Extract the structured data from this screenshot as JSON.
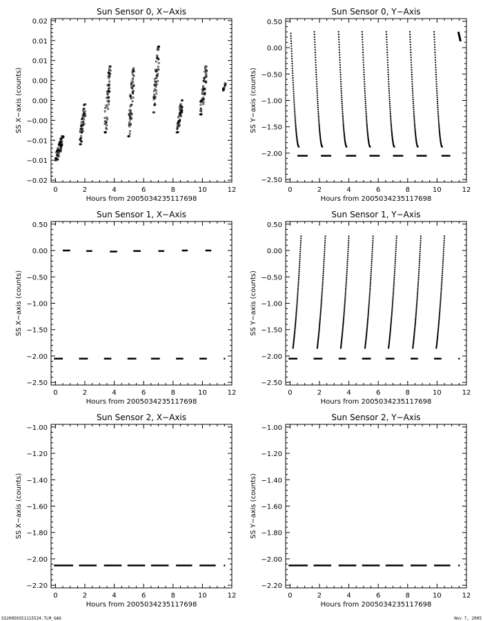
{
  "footer": {
    "left": "SS20050351115524.TLM_GAO",
    "right": "Nov  7, 2005"
  },
  "chart_data": [
    {
      "type": "scatter",
      "title": "Sun Sensor 0, X−Axis",
      "xlabel": "Hours from 2005034235117698",
      "ylabel": "SS X−axis (counts)",
      "xlim": [
        -0.3,
        12
      ],
      "ylim": [
        -0.0205,
        0.0205
      ],
      "xticks": [
        0,
        2,
        4,
        6,
        8,
        10,
        12
      ],
      "yticks": [
        -0.02,
        -0.015,
        -0.01,
        -0.005,
        0.0,
        0.005,
        0.01,
        0.015,
        0.02
      ],
      "yticklabels": [
        "−0.02",
        "−0.01",
        "−0.01",
        "−0.00",
        "0.00",
        "0.00",
        "0.01",
        "0.01",
        "0.02"
      ],
      "groups": [
        {
          "x": [
            0.0,
            0.55
          ],
          "y": [
            -0.015,
            -0.009
          ],
          "points": 70
        },
        {
          "x": [
            1.65,
            2.05
          ],
          "y": [
            -0.011,
            -0.001
          ],
          "points": 55
        },
        {
          "x": [
            3.35,
            3.75
          ],
          "y": [
            -0.008,
            0.0085
          ],
          "points": 65
        },
        {
          "x": [
            4.95,
            5.35
          ],
          "y": [
            -0.009,
            0.008
          ],
          "points": 65
        },
        {
          "x": [
            6.65,
            7.05
          ],
          "y": [
            -0.003,
            0.0135
          ],
          "points": 60
        },
        {
          "x": [
            8.25,
            8.65
          ],
          "y": [
            -0.008,
            0.0
          ],
          "points": 55
        },
        {
          "x": [
            9.85,
            10.3
          ],
          "y": [
            -0.0035,
            0.0085
          ],
          "points": 60
        },
        {
          "x": [
            11.4,
            11.6
          ],
          "y": [
            0.0025,
            0.0045
          ],
          "points": 12
        }
      ]
    },
    {
      "type": "scatter",
      "title": "Sun Sensor 0, Y−Axis",
      "xlabel": "Hours from 2005034235117698",
      "ylabel": "SS Y−axis (counts)",
      "xlim": [
        -0.3,
        12
      ],
      "ylim": [
        -2.55,
        0.55
      ],
      "xticks": [
        0,
        2,
        4,
        6,
        8,
        10,
        12
      ],
      "yticks": [
        -2.5,
        -2.0,
        -1.5,
        -1.0,
        -0.5,
        0.0,
        0.5
      ],
      "yticklabels": [
        "−2.50",
        "−2.00",
        "−1.50",
        "−1.00",
        "−0.50",
        "0.00",
        "0.50"
      ],
      "ramps": [
        {
          "x_start": 0.05,
          "x_end": 0.6,
          "y_start": 0.27,
          "y_end": -1.88
        },
        {
          "x_start": 1.65,
          "x_end": 2.2,
          "y_start": 0.3,
          "y_end": -1.88
        },
        {
          "x_start": 3.3,
          "x_end": 3.85,
          "y_start": 0.3,
          "y_end": -1.88
        },
        {
          "x_start": 4.9,
          "x_end": 5.45,
          "y_start": 0.3,
          "y_end": -1.88
        },
        {
          "x_start": 6.55,
          "x_end": 7.1,
          "y_start": 0.3,
          "y_end": -1.88
        },
        {
          "x_start": 8.15,
          "x_end": 8.7,
          "y_start": 0.3,
          "y_end": -1.88
        },
        {
          "x_start": 9.8,
          "x_end": 10.35,
          "y_start": 0.3,
          "y_end": -1.88
        }
      ],
      "flat_segments": [
        {
          "x": [
            0.5,
            1.2
          ],
          "y": -2.05
        },
        {
          "x": [
            2.1,
            2.8
          ],
          "y": -2.05
        },
        {
          "x": [
            3.8,
            4.5
          ],
          "y": -2.05
        },
        {
          "x": [
            5.4,
            6.1
          ],
          "y": -2.05
        },
        {
          "x": [
            7.0,
            7.7
          ],
          "y": -2.05
        },
        {
          "x": [
            8.6,
            9.3
          ],
          "y": -2.05
        },
        {
          "x": [
            10.3,
            10.9
          ],
          "y": -2.05
        }
      ],
      "extra_segments": [
        {
          "x": [
            11.45,
            11.6
          ],
          "y": [
            0.3,
            0.12
          ]
        }
      ]
    },
    {
      "type": "scatter",
      "title": "Sun Sensor 1, X−Axis",
      "xlabel": "Hours from 2005034235117698",
      "ylabel": "SS X−axis (counts)",
      "xlim": [
        -0.3,
        12
      ],
      "ylim": [
        -2.55,
        0.55
      ],
      "xticks": [
        0,
        2,
        4,
        6,
        8,
        10,
        12
      ],
      "yticks": [
        -2.5,
        -2.0,
        -1.5,
        -1.0,
        -0.5,
        0.0,
        0.5
      ],
      "yticklabels": [
        "−2.50",
        "−2.00",
        "−1.50",
        "−1.00",
        "−0.50",
        "0.00",
        "0.50"
      ],
      "flat_segments": [
        {
          "x": [
            0.5,
            1.0
          ],
          "y": 0.0
        },
        {
          "x": [
            2.1,
            2.5
          ],
          "y": -0.01
        },
        {
          "x": [
            3.7,
            4.2
          ],
          "y": -0.02
        },
        {
          "x": [
            5.3,
            5.8
          ],
          "y": -0.01
        },
        {
          "x": [
            7.0,
            7.4
          ],
          "y": -0.01
        },
        {
          "x": [
            8.6,
            9.0
          ],
          "y": 0.0
        },
        {
          "x": [
            10.2,
            10.6
          ],
          "y": 0.0
        },
        {
          "x": [
            -0.1,
            0.5
          ],
          "y": -2.05
        },
        {
          "x": [
            1.6,
            2.2
          ],
          "y": -2.05
        },
        {
          "x": [
            3.3,
            3.8
          ],
          "y": -2.05
        },
        {
          "x": [
            4.9,
            5.5
          ],
          "y": -2.05
        },
        {
          "x": [
            6.5,
            7.1
          ],
          "y": -2.05
        },
        {
          "x": [
            8.2,
            8.7
          ],
          "y": -2.05
        },
        {
          "x": [
            9.8,
            10.3
          ],
          "y": -2.05
        },
        {
          "x": [
            11.45,
            11.5
          ],
          "y": -2.05
        }
      ]
    },
    {
      "type": "scatter",
      "title": "Sun Sensor 1, Y−Axis",
      "xlabel": "Hours from 2005034235117698",
      "ylabel": "SS Y−axis (counts)",
      "xlim": [
        -0.3,
        12
      ],
      "ylim": [
        -2.55,
        0.55
      ],
      "xticks": [
        0,
        2,
        4,
        6,
        8,
        10,
        12
      ],
      "yticks": [
        -2.5,
        -2.0,
        -1.5,
        -1.0,
        -0.5,
        0.0,
        0.5
      ],
      "yticklabels": [
        "−2.50",
        "−2.00",
        "−1.50",
        "−1.00",
        "−0.50",
        "0.00",
        "0.50"
      ],
      "ramps": [
        {
          "x_start": 0.2,
          "x_end": 0.75,
          "y_start": -1.85,
          "y_end": 0.27
        },
        {
          "x_start": 1.85,
          "x_end": 2.4,
          "y_start": -1.85,
          "y_end": 0.27
        },
        {
          "x_start": 3.45,
          "x_end": 4.0,
          "y_start": -1.85,
          "y_end": 0.27
        },
        {
          "x_start": 5.1,
          "x_end": 5.65,
          "y_start": -1.85,
          "y_end": 0.27
        },
        {
          "x_start": 6.7,
          "x_end": 7.25,
          "y_start": -1.85,
          "y_end": 0.27
        },
        {
          "x_start": 8.35,
          "x_end": 8.9,
          "y_start": -1.85,
          "y_end": 0.27
        },
        {
          "x_start": 9.95,
          "x_end": 10.5,
          "y_start": -1.85,
          "y_end": 0.27
        }
      ],
      "flat_segments": [
        {
          "x": [
            -0.1,
            0.5
          ],
          "y": -2.05
        },
        {
          "x": [
            1.6,
            2.2
          ],
          "y": -2.05
        },
        {
          "x": [
            3.3,
            3.8
          ],
          "y": -2.05
        },
        {
          "x": [
            4.9,
            5.5
          ],
          "y": -2.05
        },
        {
          "x": [
            6.5,
            7.1
          ],
          "y": -2.05
        },
        {
          "x": [
            8.2,
            8.7
          ],
          "y": -2.05
        },
        {
          "x": [
            9.8,
            10.3
          ],
          "y": -2.05
        },
        {
          "x": [
            11.45,
            11.5
          ],
          "y": -2.05
        }
      ]
    },
    {
      "type": "scatter",
      "title": "Sun Sensor 2, X−Axis",
      "xlabel": "Hours from 2005034235117698",
      "ylabel": "SS X−axis (counts)",
      "xlim": [
        -0.3,
        12
      ],
      "ylim": [
        -2.22,
        -0.98
      ],
      "xticks": [
        0,
        2,
        4,
        6,
        8,
        10,
        12
      ],
      "yticks": [
        -2.2,
        -2.0,
        -1.8,
        -1.6,
        -1.4,
        -1.2,
        -1.0
      ],
      "yticklabels": [
        "−2.20",
        "−2.00",
        "−1.80",
        "−1.60",
        "−1.40",
        "−1.20",
        "−1.00"
      ],
      "flat_segments": [
        {
          "x": [
            -0.1,
            1.2
          ],
          "y": -2.05
        },
        {
          "x": [
            1.6,
            2.8
          ],
          "y": -2.05
        },
        {
          "x": [
            3.3,
            4.5
          ],
          "y": -2.05
        },
        {
          "x": [
            4.9,
            6.1
          ],
          "y": -2.05
        },
        {
          "x": [
            6.5,
            7.7
          ],
          "y": -2.05
        },
        {
          "x": [
            8.2,
            9.3
          ],
          "y": -2.05
        },
        {
          "x": [
            9.8,
            10.9
          ],
          "y": -2.05
        },
        {
          "x": [
            11.45,
            11.5
          ],
          "y": -2.05
        }
      ]
    },
    {
      "type": "scatter",
      "title": "Sun Sensor 2, Y−Axis",
      "xlabel": "Hours from 2005034235117698",
      "ylabel": "SS Y−axis (counts)",
      "xlim": [
        -0.3,
        12
      ],
      "ylim": [
        -2.22,
        -0.98
      ],
      "xticks": [
        0,
        2,
        4,
        6,
        8,
        10,
        12
      ],
      "yticks": [
        -2.2,
        -2.0,
        -1.8,
        -1.6,
        -1.4,
        -1.2,
        -1.0
      ],
      "yticklabels": [
        "−2.20",
        "−2.00",
        "−1.80",
        "−1.60",
        "−1.40",
        "−1.20",
        "−1.00"
      ],
      "flat_segments": [
        {
          "x": [
            -0.1,
            1.2
          ],
          "y": -2.05
        },
        {
          "x": [
            1.6,
            2.8
          ],
          "y": -2.05
        },
        {
          "x": [
            3.3,
            4.5
          ],
          "y": -2.05
        },
        {
          "x": [
            4.9,
            6.1
          ],
          "y": -2.05
        },
        {
          "x": [
            6.5,
            7.7
          ],
          "y": -2.05
        },
        {
          "x": [
            8.2,
            9.3
          ],
          "y": -2.05
        },
        {
          "x": [
            9.8,
            10.9
          ],
          "y": -2.05
        },
        {
          "x": [
            11.45,
            11.5
          ],
          "y": -2.05
        }
      ]
    }
  ]
}
